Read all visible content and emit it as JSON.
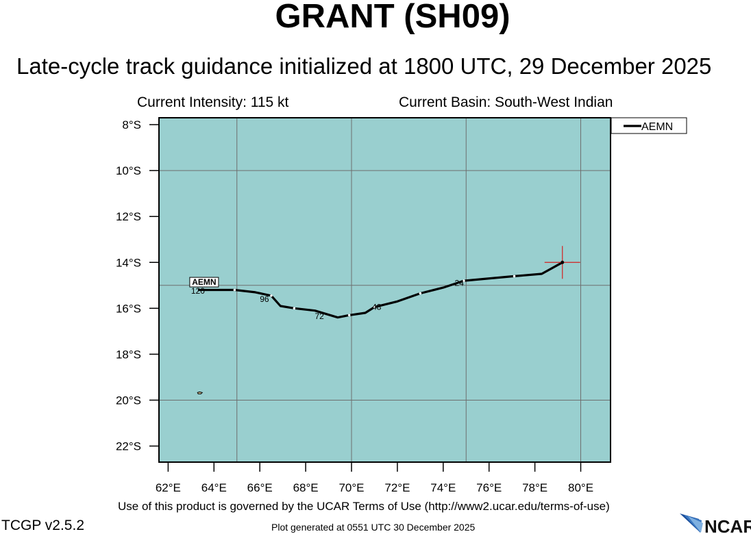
{
  "header": {
    "title": "GRANT (SH09)",
    "subtitle": "Late-cycle track guidance initialized at 1800 UTC, 29 December 2025",
    "intensity": "Current Intensity: 115 kt",
    "basin": "Current Basin: South-West Indian"
  },
  "footer": {
    "terms": "Use of this product is governed by the UCAR Terms of Use (http://www2.ucar.edu/terms-of-use)",
    "version": "TCGP v2.5.2",
    "generated": "Plot generated at 0551 UTC   30 December 2025",
    "logo_text": "NCAR"
  },
  "colors": {
    "ocean": "#99cfcf",
    "grid": "#6e6e6e",
    "track": "#000000",
    "current_position_marker": "#d42020"
  },
  "chart_data": {
    "type": "map-track",
    "lon_range": [
      61.6,
      81.3
    ],
    "lat_range": [
      -22.7,
      -7.7
    ],
    "lon_ticks": [
      62,
      64,
      66,
      68,
      70,
      72,
      74,
      76,
      78,
      80
    ],
    "lon_tick_labels": [
      "62°E",
      "64°E",
      "66°E",
      "68°E",
      "70°E",
      "72°E",
      "74°E",
      "76°E",
      "78°E",
      "80°E"
    ],
    "lat_ticks": [
      -8,
      -10,
      -12,
      -14,
      -16,
      -18,
      -20,
      -22
    ],
    "lat_tick_labels": [
      "8°S",
      "10°S",
      "12°S",
      "14°S",
      "16°S",
      "18°S",
      "20°S",
      "22°S"
    ],
    "grid_lon": [
      65,
      70,
      75,
      80
    ],
    "grid_lat": [
      -10,
      -15,
      -20
    ],
    "legend": {
      "position": "top-right",
      "entries": [
        "AEMN"
      ]
    },
    "current_position": {
      "lon": 79.2,
      "lat": -14.0
    },
    "series": [
      {
        "name": "AEMN",
        "points": [
          {
            "lon": 79.2,
            "lat": -14.0
          },
          {
            "lon": 78.3,
            "lat": -14.5
          },
          {
            "lon": 77.1,
            "lat": -14.6
          },
          {
            "lon": 74.9,
            "lat": -14.8
          },
          {
            "lon": 74.0,
            "lat": -15.1
          },
          {
            "lon": 73.0,
            "lat": -15.35
          },
          {
            "lon": 72.0,
            "lat": -15.7
          },
          {
            "lon": 71.0,
            "lat": -15.95
          },
          {
            "lon": 70.6,
            "lat": -16.2
          },
          {
            "lon": 69.9,
            "lat": -16.3
          },
          {
            "lon": 69.4,
            "lat": -16.4
          },
          {
            "lon": 68.4,
            "lat": -16.1
          },
          {
            "lon": 67.5,
            "lat": -16.0
          },
          {
            "lon": 66.9,
            "lat": -15.9
          },
          {
            "lon": 66.5,
            "lat": -15.45
          },
          {
            "lon": 65.8,
            "lat": -15.3
          },
          {
            "lon": 64.9,
            "lat": -15.2
          },
          {
            "lon": 63.3,
            "lat": -15.2
          }
        ],
        "marks": [
          {
            "lon": 77.1,
            "lat": -14.6
          },
          {
            "lon": 74.9,
            "lat": -14.8
          },
          {
            "lon": 73.0,
            "lat": -15.35
          },
          {
            "lon": 71.0,
            "lat": -15.95
          },
          {
            "lon": 69.9,
            "lat": -16.3
          },
          {
            "lon": 67.5,
            "lat": -16.0
          },
          {
            "lon": 66.5,
            "lat": -15.45
          },
          {
            "lon": 64.9,
            "lat": -15.2
          }
        ],
        "hour_labels": [
          {
            "text": "24",
            "lon": 74.7,
            "lat": -14.9
          },
          {
            "text": "48",
            "lon": 71.1,
            "lat": -15.95
          },
          {
            "text": "72",
            "lon": 68.6,
            "lat": -16.35
          },
          {
            "text": "96",
            "lon": 66.2,
            "lat": -15.6
          },
          {
            "text": "120",
            "lon": 63.3,
            "lat": -15.25
          }
        ],
        "end_label": {
          "text": "AEMN",
          "lon": 63.6,
          "lat": -14.95
        }
      }
    ],
    "land": [
      {
        "name": "Cargados Carajos Shoals",
        "lon": 63.4,
        "lat": -19.7
      }
    ]
  }
}
